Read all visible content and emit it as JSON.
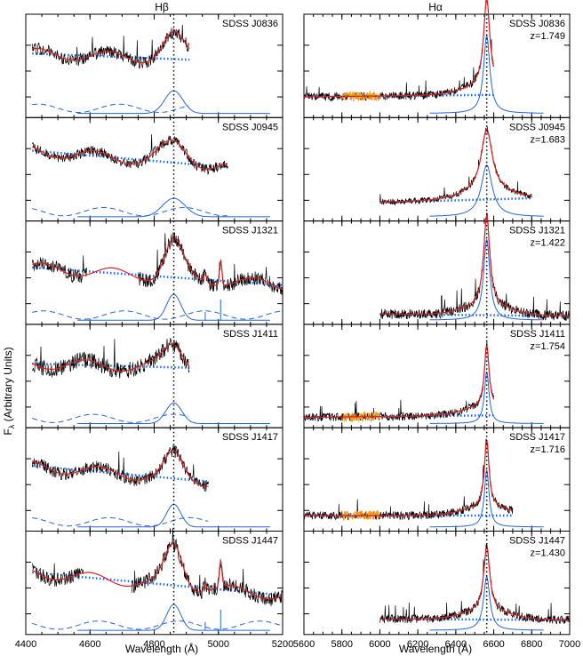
{
  "figure": {
    "ylabel": "F",
    "ylabel_sub": "λ",
    "ylabel_rest": " (Arbitrary Units)"
  },
  "chart_data": [
    {
      "type": "line",
      "id": "hbeta",
      "title": "Hβ",
      "xlabel": "Wavelength (Å)",
      "ylabel": "Fλ (Arbitrary Units)",
      "xlim": [
        4400,
        5200
      ],
      "xticks": [
        4400,
        4600,
        4800,
        5000,
        5200
      ],
      "line_center": 4861,
      "colors": {
        "data": "#000000",
        "model": "#e02020",
        "continuum": "#2266dd",
        "components": "#2266dd",
        "marker": "#000000"
      },
      "panels": [
        {
          "object": "SDSS J0836",
          "x_range": [
            4420,
            4910
          ],
          "gaps": [],
          "level_left": 0.62,
          "level_right": 0.56,
          "peak": 0.22,
          "peak_width": 18,
          "narrow": false,
          "comp_amp": 0.22,
          "noise": 0.06,
          "phase": 1.1
        },
        {
          "object": "SDSS J0945",
          "x_range": [
            4420,
            5030
          ],
          "gaps": [],
          "level_left": 0.68,
          "level_right": 0.52,
          "peak": 0.18,
          "peak_width": 25,
          "narrow": false,
          "comp_amp": 0.18,
          "noise": 0.05,
          "phase": 2.3
        },
        {
          "object": "SDSS J1321",
          "x_range": [
            4420,
            5200
          ],
          "gaps": [
            [
              4590,
              4750
            ]
          ],
          "level_left": 0.55,
          "level_right": 0.38,
          "peak": 0.35,
          "peak_width": 12,
          "narrow": true,
          "comp_amp": 0.25,
          "noise": 0.07,
          "phase": 0.7
        },
        {
          "object": "SDSS J1411",
          "x_range": [
            4420,
            4910
          ],
          "gaps": [],
          "level_left": 0.62,
          "level_right": 0.58,
          "peak": 0.22,
          "peak_width": 15,
          "narrow": false,
          "comp_amp": 0.2,
          "noise": 0.08,
          "phase": 3.1
        },
        {
          "object": "SDSS J1417",
          "x_range": [
            4420,
            4970
          ],
          "gaps": [],
          "level_left": 0.63,
          "level_right": 0.48,
          "peak": 0.22,
          "peak_width": 12,
          "narrow": false,
          "comp_amp": 0.22,
          "noise": 0.06,
          "phase": 1.9
        },
        {
          "object": "SDSS J1447",
          "x_range": [
            4420,
            5200
          ],
          "gaps": [
            [
              4580,
              4730
            ]
          ],
          "level_left": 0.6,
          "level_right": 0.38,
          "peak": 0.38,
          "peak_width": 12,
          "narrow": true,
          "comp_amp": 0.25,
          "noise": 0.07,
          "phase": 2.7
        }
      ]
    },
    {
      "type": "line",
      "id": "halpha",
      "title": "Hα",
      "xlabel": "Wavelength (Å)",
      "xlim": [
        5600,
        7000
      ],
      "xticks": [
        5600,
        5800,
        6000,
        6200,
        6400,
        6600,
        6800,
        7000
      ],
      "line_center": 6563,
      "colors": {
        "data": "#000000",
        "model": "#e02020",
        "continuum": "#2266dd",
        "components": "#2266dd",
        "marker": "#000000",
        "masked": "#f0a020"
      },
      "panels": [
        {
          "object": "SDSS J0836",
          "redshift": "z=1.749",
          "x_range": [
            5600,
            6600
          ],
          "masked": [
            5800,
            6000
          ],
          "level_left": 0.2,
          "level_right": 0.22,
          "peak": 0.85,
          "peak_width": 20,
          "noise": 0.04,
          "phase": 0.5
        },
        {
          "object": "SDSS J0945",
          "redshift": "z=1.683",
          "x_range": [
            6000,
            6800
          ],
          "masked": null,
          "level_left": 0.18,
          "level_right": 0.22,
          "peak": 0.6,
          "peak_width": 35,
          "noise": 0.03,
          "phase": 1.4
        },
        {
          "object": "SDSS J1321",
          "redshift": "z=1.422",
          "x_range": [
            6000,
            7000
          ],
          "masked": null,
          "level_left": 0.1,
          "level_right": 0.08,
          "peak": 0.88,
          "peak_width": 20,
          "noise": 0.05,
          "phase": 2.2
        },
        {
          "object": "SDSS J1411",
          "redshift": "z=1.754",
          "x_range": [
            5600,
            6600
          ],
          "masked": [
            5800,
            6000
          ],
          "level_left": 0.1,
          "level_right": 0.12,
          "peak": 0.6,
          "peak_width": 15,
          "noise": 0.04,
          "phase": 0.9
        },
        {
          "object": "SDSS J1417",
          "redshift": "z=1.716",
          "x_range": [
            5600,
            6700
          ],
          "masked": [
            5800,
            6000
          ],
          "level_left": 0.15,
          "level_right": 0.15,
          "peak": 0.65,
          "peak_width": 15,
          "noise": 0.04,
          "phase": 1.7
        },
        {
          "object": "SDSS J1447",
          "redshift": "z=1.430",
          "x_range": [
            6000,
            7000
          ],
          "masked": null,
          "level_left": 0.15,
          "level_right": 0.14,
          "peak": 0.62,
          "peak_width": 20,
          "noise": 0.04,
          "phase": 2.9
        }
      ]
    }
  ]
}
